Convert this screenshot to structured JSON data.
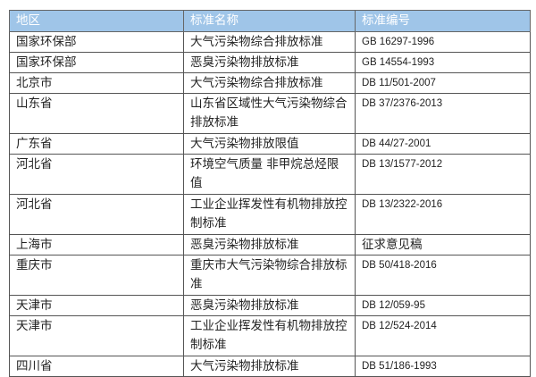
{
  "table": {
    "headers": [
      "地区",
      "标准名称",
      "标准编号"
    ],
    "header_color": "#9fc5e8",
    "rows": [
      {
        "region": "国家环保部",
        "name": "大气污染物综合排放标准",
        "code": "GB 16297-1996"
      },
      {
        "region": "国家环保部",
        "name": "恶臭污染物排放标准",
        "code": "GB 14554-1993"
      },
      {
        "region": "北京市",
        "name": "大气污染物综合排放标准",
        "code": "DB 11/501-2007"
      },
      {
        "region": "山东省",
        "name": "山东省区域性大气污染物综合排放标准",
        "code": "DB 37/2376-2013"
      },
      {
        "region": "广东省",
        "name": "大气污染物排放限值",
        "code": "DB 44/27-2001"
      },
      {
        "region": "河北省",
        "name": "环境空气质量 非甲烷总烃限值",
        "code": "DB 13/1577-2012"
      },
      {
        "region": "河北省",
        "name": "工业企业挥发性有机物排放控制标准",
        "code": "DB 13/2322-2016"
      },
      {
        "region": "上海市",
        "name": "恶臭污染物排放标准",
        "code": "征求意见稿"
      },
      {
        "region": "重庆市",
        "name": "重庆市大气污染物综合排放标准",
        "code": "DB 50/418-2016"
      },
      {
        "region": "天津市",
        "name": "恶臭污染物排放标准",
        "code": "DB 12/059-95"
      },
      {
        "region": "天津市",
        "name": "工业企业挥发性有机物排放控制标准",
        "code": "DB 12/524-2014"
      },
      {
        "region": "四川省",
        "name": "大气污染物排放标准",
        "code": "DB 51/186-1993"
      }
    ]
  }
}
